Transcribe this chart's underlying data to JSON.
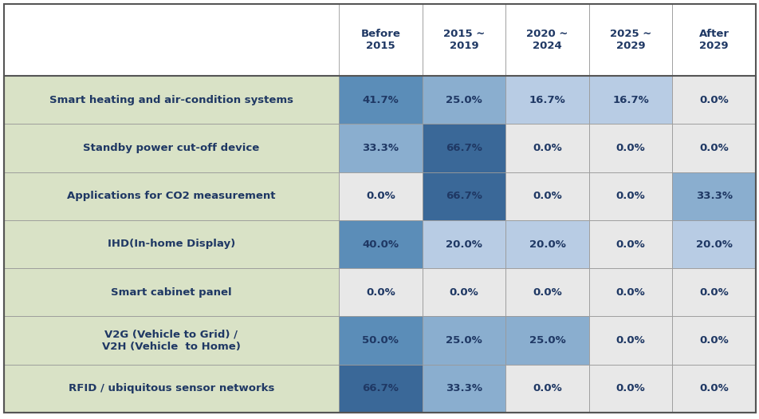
{
  "col_headers": [
    "Before\n2015",
    "2015 ~\n2019",
    "2020 ~\n2024",
    "2025 ~\n2029",
    "After\n2029"
  ],
  "row_labels": [
    "Smart heating and air-condition systems",
    "Standby power cut-off device",
    "Applications for CO2 measurement",
    "IHD(In-home Display)",
    "Smart cabinet panel",
    "V2G (Vehicle to Grid) /\nV2H (Vehicle  to Home)",
    "RFID / ubiquitous sensor networks"
  ],
  "values": [
    [
      41.7,
      25.0,
      16.7,
      16.7,
      0.0
    ],
    [
      33.3,
      66.7,
      0.0,
      0.0,
      0.0
    ],
    [
      0.0,
      66.7,
      0.0,
      0.0,
      33.3
    ],
    [
      40.0,
      20.0,
      20.0,
      0.0,
      20.0
    ],
    [
      0.0,
      0.0,
      0.0,
      0.0,
      0.0
    ],
    [
      50.0,
      25.0,
      25.0,
      0.0,
      0.0
    ],
    [
      66.7,
      33.3,
      0.0,
      0.0,
      0.0
    ]
  ],
  "bg_color": "#ffffff",
  "row_label_bg": "#d9e2c6",
  "header_text_color": "#1f3864",
  "cell_text_color": "#1f3864",
  "row_label_text_color": "#1f3864",
  "color_zero": "#e8e8e8",
  "color_low": "#b8cce4",
  "color_mid": "#8aaecf",
  "color_high": "#5b8db8",
  "color_very_high": "#3a6898",
  "header_bg": "#ffffff",
  "grid_color": "#999999",
  "cell_fontsize": 9.5,
  "row_label_fontsize": 9.5,
  "header_fontsize": 9.5
}
